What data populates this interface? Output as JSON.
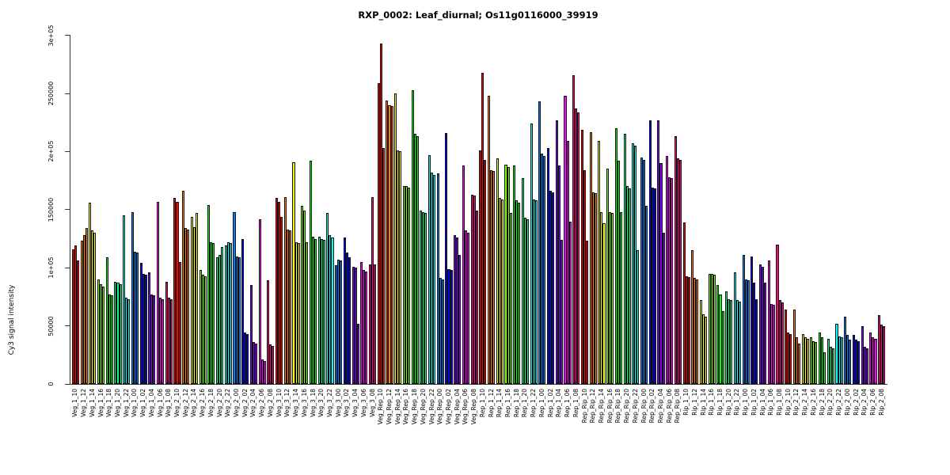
{
  "title": "RXP_0002: Leaf_diurnal; Os11g0116000_39919",
  "y_axis": {
    "label": "Cy3 signal intensity",
    "tick_labels": [
      "0",
      "50000",
      "1e+05",
      "150000",
      "2e+05",
      "250000",
      "3e+05"
    ],
    "tick_values": [
      0,
      50000,
      100000,
      150000,
      200000,
      250000,
      300000
    ]
  },
  "chart_data": {
    "type": "bar",
    "title": "RXP_0002: Leaf_diurnal; Os11g0116000_39919",
    "xlabel": "",
    "ylabel": "Cy3 signal intensity",
    "ylim": [
      0,
      300000
    ],
    "grid": false,
    "legend": "none",
    "bars_per_category": 3,
    "palette_cycle": [
      "#FF0000",
      "#FF8000",
      "#FFFF00",
      "#80FF00",
      "#00FF00",
      "#00FF80",
      "#00FFFF",
      "#0080FF",
      "#0000FF",
      "#8000FF",
      "#FF00FF",
      "#FF0080"
    ],
    "bar_border_color": "#000000",
    "categories": [
      "Veg_1_10",
      "Veg_1_12",
      "Veg_1_14",
      "Veg_1_16",
      "Veg_1_18",
      "Veg_1_20",
      "Veg_1_22",
      "Veg_1_00",
      "Veg_1_02",
      "Veg_1_04",
      "Veg_1_06",
      "Veg_1_08",
      "Veg_2_10",
      "Veg_2_12",
      "Veg_2_14",
      "Veg_2_16",
      "Veg_2_18",
      "Veg_2_20",
      "Veg_2_22",
      "Veg_2_00",
      "Veg_2_02",
      "Veg_2_04",
      "Veg_2_06",
      "Veg_2_08",
      "Veg_3_10",
      "Veg_3_12",
      "Veg_3_14",
      "Veg_3_16",
      "Veg_3_18",
      "Veg_3_20",
      "Veg_3_22",
      "Veg_3_00",
      "Veg_3_02",
      "Veg_3_04",
      "Veg_3_06",
      "Veg_3_08",
      "Veg_Rep_10",
      "Veg_Rep_12",
      "Veg_Rep_14",
      "Veg_Rep_16",
      "Veg_Rep_18",
      "Veg_Rep_20",
      "Veg_Rep_22",
      "Veg_Rep_00",
      "Veg_Rep_02",
      "Veg_Rep_04",
      "Veg_Rep_06",
      "Veg_Rep_08",
      "Rep_1_10",
      "Rep_1_12",
      "Rep_1_14",
      "Rep_1_16",
      "Rep_1_18",
      "Rep_1_20",
      "Rep_1_22",
      "Rep_1_00",
      "Rep_1_02",
      "Rep_1_04",
      "Rep_1_06",
      "Rep_1_08",
      "Rep_Rip_10",
      "Rep_Rip_12",
      "Rep_Rip_14",
      "Rep_Rip_16",
      "Rep_Rip_18",
      "Rep_Rip_20",
      "Rep_Rip_22",
      "Rep_Rip_00",
      "Rep_Rip_02",
      "Rep_Rip_04",
      "Rep_Rip_06",
      "Rep_Rip_08",
      "Rip_1_10",
      "Rip_1_12",
      "Rip_1_14",
      "Rip_1_16",
      "Rip_1_18",
      "Rip_1_20",
      "Rip_1_22",
      "Rip_1_00",
      "Rip_1_02",
      "Rip_1_04",
      "Rip_1_06",
      "Rip_1_08",
      "Rip_2_10",
      "Rip_2_12",
      "Rip_2_14",
      "Rip_2_16",
      "Rip_2_18",
      "Rip_2_20",
      "Rip_2_22",
      "Rip_2_00",
      "Rip_2_02",
      "Rip_2_04",
      "Rip_2_06",
      "Rip_2_08"
    ],
    "values": [
      [
        116000,
        119000,
        106000
      ],
      [
        123000,
        128000,
        134000
      ],
      [
        156000,
        132000,
        130000
      ],
      [
        90000,
        86000,
        84000
      ],
      [
        109000,
        77000,
        76000
      ],
      [
        88000,
        87000,
        86000
      ],
      [
        145000,
        74000,
        73000
      ],
      [
        148000,
        114000,
        113000
      ],
      [
        104000,
        95000,
        94000
      ],
      [
        96000,
        77000,
        76000
      ],
      [
        157000,
        74000,
        73000
      ],
      [
        88000,
        74000,
        73000
      ],
      [
        160000,
        157000,
        105000
      ],
      [
        166000,
        134000,
        133000
      ],
      [
        144000,
        135000,
        147000
      ],
      [
        98000,
        94000,
        93000
      ],
      [
        154000,
        122000,
        121000
      ],
      [
        109000,
        111000,
        118000
      ],
      [
        119000,
        122000,
        121000
      ],
      [
        148000,
        110000,
        109000
      ],
      [
        125000,
        44000,
        43000
      ],
      [
        85000,
        36000,
        35000
      ],
      [
        142000,
        21000,
        20000
      ],
      [
        89000,
        34000,
        33000
      ],
      [
        160000,
        157000,
        144000
      ],
      [
        161000,
        133000,
        132000
      ],
      [
        191000,
        122000,
        121000
      ],
      [
        153000,
        149000,
        122000
      ],
      [
        192000,
        127000,
        125000
      ],
      [
        127000,
        125000,
        124000
      ],
      [
        147000,
        128000,
        126000
      ],
      [
        102000,
        107000,
        106000
      ],
      [
        126000,
        113000,
        109000
      ],
      [
        101000,
        100000,
        52000
      ],
      [
        105000,
        98000,
        97000
      ],
      [
        103000,
        161000,
        103000
      ],
      [
        259000,
        293000,
        203000
      ],
      [
        244000,
        240000,
        239000
      ],
      [
        250000,
        201000,
        200000
      ],
      [
        170000,
        170000,
        169000
      ],
      [
        253000,
        215000,
        213000
      ],
      [
        149000,
        148000,
        147000
      ],
      [
        197000,
        182000,
        180000
      ],
      [
        181000,
        91000,
        90000
      ],
      [
        216000,
        99000,
        98000
      ],
      [
        128000,
        126000,
        111000
      ],
      [
        188000,
        132000,
        130000
      ],
      [
        163000,
        162000,
        149000
      ],
      [
        201000,
        268000,
        193000
      ],
      [
        248000,
        184000,
        183000
      ],
      [
        194000,
        160000,
        159000
      ],
      [
        189000,
        187000,
        147000
      ],
      [
        188000,
        158000,
        156000
      ],
      [
        177000,
        143000,
        142000
      ],
      [
        224000,
        159000,
        158000
      ],
      [
        243000,
        198000,
        196000
      ],
      [
        203000,
        166000,
        165000
      ],
      [
        227000,
        188000,
        124000
      ],
      [
        248000,
        209000,
        140000
      ],
      [
        266000,
        237000,
        234000
      ],
      [
        219000,
        184000,
        123000
      ],
      [
        217000,
        165000,
        164000
      ],
      [
        209000,
        148000,
        138000
      ],
      [
        185000,
        148000,
        147000
      ],
      [
        220000,
        192000,
        148000
      ],
      [
        215000,
        170000,
        168000
      ],
      [
        207000,
        205000,
        115000
      ],
      [
        195000,
        193000,
        153000
      ],
      [
        227000,
        169000,
        168000
      ],
      [
        227000,
        190000,
        130000
      ],
      [
        196000,
        178000,
        177000
      ],
      [
        213000,
        194000,
        193000
      ],
      [
        139000,
        93000,
        92000
      ],
      [
        115000,
        91000,
        90000
      ],
      [
        72000,
        60000,
        58000
      ],
      [
        95000,
        95000,
        94000
      ],
      [
        85000,
        77000,
        63000
      ],
      [
        80000,
        73000,
        72000
      ],
      [
        96000,
        72000,
        71000
      ],
      [
        111000,
        90000,
        89000
      ],
      [
        110000,
        87000,
        73000
      ],
      [
        103000,
        101000,
        87000
      ],
      [
        106000,
        69000,
        68000
      ],
      [
        120000,
        72000,
        70000
      ],
      [
        64000,
        44000,
        43000
      ],
      [
        64000,
        40000,
        35000
      ],
      [
        43000,
        40000,
        39000
      ],
      [
        40000,
        37000,
        36000
      ],
      [
        44000,
        40000,
        27000
      ],
      [
        39000,
        32000,
        31000
      ],
      [
        52000,
        41000,
        40000
      ],
      [
        58000,
        42000,
        38000
      ],
      [
        42000,
        38000,
        37000
      ],
      [
        50000,
        32000,
        31000
      ],
      [
        44000,
        40000,
        39000
      ],
      [
        59000,
        51000,
        50000
      ]
    ]
  }
}
